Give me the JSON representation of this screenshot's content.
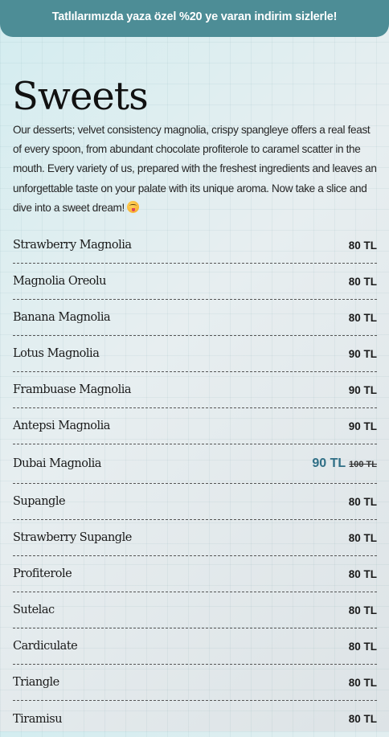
{
  "banner": {
    "text": "Tatlılarımızda yaza özel %20 ye varan indirim sizlerle!"
  },
  "section": {
    "title": "Sweets",
    "description": "Our desserts; velvet consistency magnolia, crispy spangleye offers a real feast of every spoon, from abundant chocolate profiterole to caramel scatter in the mouth. Every variety of us, prepared with the freshest ingredients and leaves an unforgettable taste on your palate with its unique aroma. Now take a slice and dive into a sweet dream!",
    "description_emoji": "face-savoring-food-icon"
  },
  "menu": {
    "items": [
      {
        "name": "Strawberry Magnolia",
        "price": "80 TL"
      },
      {
        "name": "Magnolia Oreolu",
        "price": "80 TL"
      },
      {
        "name": "Banana Magnolia",
        "price": "80 TL"
      },
      {
        "name": "Lotus Magnolia",
        "price": "90 TL"
      },
      {
        "name": "Frambuase Magnolia",
        "price": "90 TL"
      },
      {
        "name": "Antepsi Magnolia",
        "price": "90 TL"
      },
      {
        "name": "Dubai Magnolia",
        "price": "90 TL",
        "old_price": "100 TL"
      },
      {
        "name": "Supangle",
        "price": "80 TL"
      },
      {
        "name": "Strawberry Supangle",
        "price": "80 TL"
      },
      {
        "name": "Profiterole",
        "price": "80 TL"
      },
      {
        "name": "Sutelac",
        "price": "80 TL"
      },
      {
        "name": "Cardiculate",
        "price": "80 TL"
      },
      {
        "name": "Triangle",
        "price": "80 TL"
      },
      {
        "name": "Tiramisu",
        "price": "80 TL"
      }
    ]
  },
  "colors": {
    "banner_bg": "#4d8d96",
    "sale_price": "#2f6f86"
  }
}
